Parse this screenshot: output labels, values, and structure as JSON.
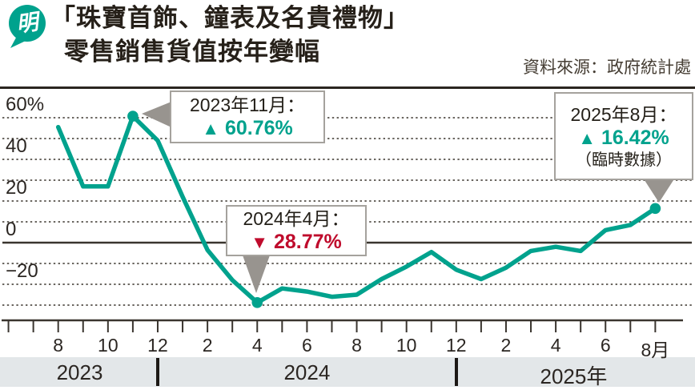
{
  "header": {
    "logo_text": "明",
    "title_line1": "「珠寶首飾、鐘表及名貴禮物」",
    "title_line2": "零售銷售貨值按年變幅",
    "source": "資料來源：政府統計處"
  },
  "colors": {
    "teal": "#00a28d",
    "red": "#bf0b2c",
    "dark_line": "#3a352f",
    "grid_dotted": "#56504a",
    "band_bg": "#e3e7e9",
    "pointer_gray": "#98948f",
    "box_border": "#a5a29d"
  },
  "chart_data": {
    "type": "line",
    "title": "「珠寶首飾、鐘表及名貴禮物」零售銷售貨值按年變幅",
    "source": "資料來源：政府統計處",
    "unit": "%",
    "grid": "dotted horizontal every 10%, solid zero line",
    "legend_position": "none",
    "x": [
      "2023-08",
      "2023-09",
      "2023-10",
      "2023-11",
      "2023-12",
      "2024-01",
      "2024-02",
      "2024-03",
      "2024-04",
      "2024-05",
      "2024-06",
      "2024-07",
      "2024-08",
      "2024-09",
      "2024-10",
      "2024-11",
      "2024-12",
      "2025-01",
      "2025-02",
      "2025-03",
      "2025-04",
      "2025-05",
      "2025-06",
      "2025-07",
      "2025-08"
    ],
    "values": [
      55.5,
      27,
      27,
      60.76,
      49,
      22,
      -3.5,
      -18,
      -28.77,
      -22,
      -23.5,
      -26,
      -25,
      -17.5,
      -11.5,
      -4.5,
      -13,
      -17.5,
      -12,
      -4,
      -2,
      -4,
      6,
      8.5,
      16.42
    ],
    "y_axis": {
      "min": -35,
      "max": 70,
      "labels": [
        {
          "text": "60%",
          "value": 60
        },
        {
          "text": "40",
          "value": 40
        },
        {
          "text": "20",
          "value": 20
        },
        {
          "text": "0",
          "value": 0
        },
        {
          "text": "−20",
          "value": -20
        }
      ],
      "dotted_gridlines": [
        60,
        50,
        40,
        30,
        20,
        10,
        -10,
        -20,
        -30
      ],
      "zero_line": 0
    },
    "x_axis": {
      "tick_months_before_first_point": 2,
      "labels": [
        {
          "text": "8",
          "month_index": 0
        },
        {
          "text": "10",
          "month_index": 2
        },
        {
          "text": "12",
          "month_index": 4
        },
        {
          "text": "2",
          "month_index": 6
        },
        {
          "text": "4",
          "month_index": 8
        },
        {
          "text": "6",
          "month_index": 10
        },
        {
          "text": "8",
          "month_index": 12
        },
        {
          "text": "10",
          "month_index": 14
        },
        {
          "text": "12",
          "month_index": 16
        },
        {
          "text": "2",
          "month_index": 18
        },
        {
          "text": "4",
          "month_index": 20
        },
        {
          "text": "6",
          "month_index": 22
        },
        {
          "text": "8月",
          "month_index": 24
        }
      ],
      "years": [
        "2023",
        "2024",
        "2025年"
      ],
      "year_divider_month_indices": [
        4,
        16
      ]
    },
    "annotations": [
      {
        "date": "2023年11月：",
        "arrow_glyph": "▲",
        "value": "60.76%",
        "direction": "up",
        "month_index": 3,
        "numeric": 60.76,
        "note": ""
      },
      {
        "date": "2024年4月：",
        "arrow_glyph": "▼",
        "value": "28.77%",
        "direction": "down",
        "month_index": 8,
        "numeric": -28.77,
        "note": ""
      },
      {
        "date": "2025年8月：",
        "arrow_glyph": "▲",
        "value": "16.42%",
        "direction": "up",
        "month_index": 24,
        "numeric": 16.42,
        "note": "（臨時數據）"
      }
    ]
  }
}
